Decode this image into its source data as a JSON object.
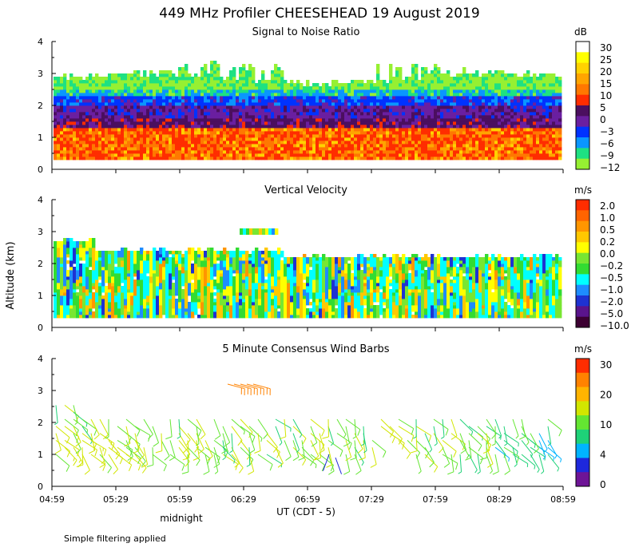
{
  "title": "449 MHz Profiler CHEESEHEAD 19 August 2019",
  "ylabel": "Altitude (km)",
  "xlabel": "UT  (CDT - 5)",
  "midnight_label": "midnight",
  "footnote": "Simple filtering applied",
  "chart_data": [
    {
      "type": "heatmap",
      "title": "Signal to Noise Ratio",
      "x_ticks": [
        "04:59",
        "05:29",
        "05:59",
        "06:29",
        "06:59",
        "07:29",
        "07:59",
        "08:29",
        "08:59"
      ],
      "y_ticks": [
        "0",
        "1",
        "2",
        "3",
        "4"
      ],
      "ylim": [
        0,
        4
      ],
      "colorbar": {
        "units": "dB",
        "labels": [
          "30",
          "25",
          "20",
          "15",
          "10",
          "5",
          "0",
          "−3",
          "−6",
          "−9",
          "−12"
        ],
        "colors": [
          "#ffffff",
          "#ffff00",
          "#ffd200",
          "#ffa500",
          "#ff7800",
          "#ff2d00",
          "#4b0f5f",
          "#6a1fa0",
          "#0032ff",
          "#0a96ff",
          "#1ee182",
          "#96f032"
        ]
      },
      "approx_profile": [
        {
          "altitude_range_km": [
            0.3,
            1.3
          ],
          "snr_dB": "10 to 25"
        },
        {
          "altitude_range_km": [
            1.3,
            2.0
          ],
          "snr_dB": "0 to 5"
        },
        {
          "altitude_range_km": [
            2.0,
            2.5
          ],
          "snr_dB": "-6 to -3"
        },
        {
          "altitude_range_km": [
            2.5,
            3.5
          ],
          "snr_dB": "-12 to -9"
        }
      ]
    },
    {
      "type": "heatmap",
      "title": "Vertical Velocity",
      "x_ticks": [
        "04:59",
        "05:29",
        "05:59",
        "06:29",
        "06:59",
        "07:29",
        "07:59",
        "08:29",
        "08:59"
      ],
      "y_ticks": [
        "0",
        "1",
        "2",
        "3",
        "4"
      ],
      "ylim": [
        0,
        4
      ],
      "colorbar": {
        "units": "m/s",
        "labels": [
          "2.0",
          "1.0",
          "0.5",
          "0.2",
          "0.0",
          "−0.2",
          "−0.5",
          "−1.0",
          "−2.0",
          "−5.0",
          "−10.0"
        ],
        "colors": [
          "#ff2d00",
          "#ff6400",
          "#ff9600",
          "#ffc800",
          "#ffff00",
          "#78e632",
          "#32dc32",
          "#00ffff",
          "#1e8cff",
          "#1e32d2",
          "#5a148c",
          "#3c0032"
        ]
      },
      "approx_profile": [
        {
          "altitude_range_km": [
            0.3,
            2.0
          ],
          "vertical_velocity_m_s": "-0.5 to 0.5"
        },
        {
          "altitude_range_km": [
            2.9,
            3.1
          ],
          "vertical_velocity_m_s": "-0.2 to 0.2"
        }
      ]
    },
    {
      "type": "wind_barbs",
      "title": "5 Minute Consensus Wind Barbs",
      "x_ticks": [
        "04:59",
        "05:29",
        "05:59",
        "06:29",
        "06:59",
        "07:29",
        "07:59",
        "08:29",
        "08:59"
      ],
      "y_ticks": [
        "0",
        "1",
        "2",
        "3",
        "4"
      ],
      "ylim": [
        0,
        4
      ],
      "colorbar": {
        "units": "m/s",
        "labels": [
          "30",
          "20",
          "10",
          "4",
          "0"
        ],
        "colors": [
          "#ff2d00",
          "#ff8200",
          "#ffb400",
          "#d2e600",
          "#64e632",
          "#1ed278",
          "#00b4ff",
          "#1e28dc",
          "#6e1496"
        ]
      },
      "approx_profile": [
        {
          "altitude_range_km": [
            1.0,
            2.7
          ],
          "wind_speed_m_s": "4 to 12"
        },
        {
          "altitude_range_km": [
            3.1,
            3.4
          ],
          "wind_speed_m_s": "about 20"
        }
      ]
    }
  ]
}
